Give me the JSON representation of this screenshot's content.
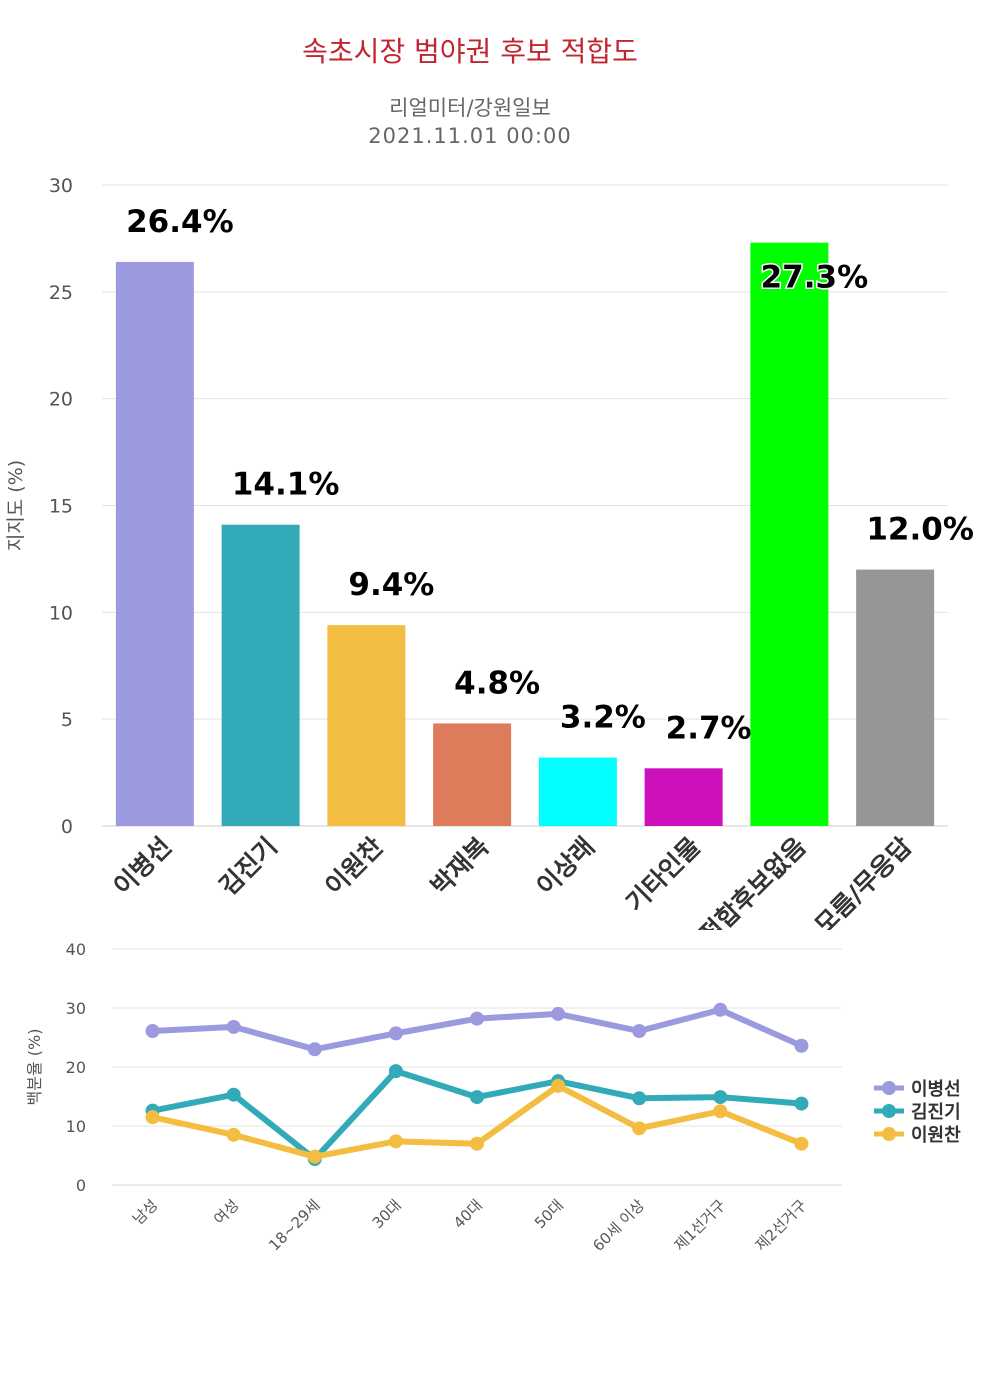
{
  "header": {
    "title": "속초시장 범야권 후보 적합도",
    "source": "리얼미터/강원일보",
    "datetime": "2021.11.01 00:00"
  },
  "chart_data": [
    {
      "type": "bar",
      "ylabel": "지지도 (%)",
      "ylim": [
        0,
        30
      ],
      "yticks": [
        0,
        5,
        10,
        15,
        20,
        25,
        30
      ],
      "grid": true,
      "categories": [
        "이병선",
        "김진기",
        "이원찬",
        "박재복",
        "이상래",
        "기타인물",
        "적합후보없음",
        "모름/무응답"
      ],
      "values": [
        26.4,
        14.1,
        9.4,
        4.8,
        3.2,
        2.7,
        27.3,
        12.0
      ],
      "data_labels": [
        "26.4%",
        "14.1%",
        "9.4%",
        "4.8%",
        "3.2%",
        "2.7%",
        "27.3%",
        "12.0%"
      ],
      "colors": [
        "#9b9ade",
        "#33aab8",
        "#f3bd42",
        "#dd7b5b",
        "#00ffff",
        "#cc10bb",
        "#00ff00",
        "#969696"
      ]
    },
    {
      "type": "line",
      "ylabel": "백분율 (%)",
      "ylim": [
        0,
        40
      ],
      "yticks": [
        0,
        10,
        20,
        30,
        40
      ],
      "grid": true,
      "legend": "right",
      "categories": [
        "남성",
        "여성",
        "18~29세",
        "30대",
        "40대",
        "50대",
        "60세 이상",
        "제1선거구",
        "제2선거구"
      ],
      "series": [
        {
          "name": "이병선",
          "color": "#9b9ade",
          "values": [
            26.1,
            26.8,
            23.0,
            25.7,
            28.2,
            29.0,
            26.1,
            29.7,
            23.6
          ]
        },
        {
          "name": "김진기",
          "color": "#33aab8",
          "values": [
            12.6,
            15.3,
            4.4,
            19.3,
            14.9,
            17.6,
            14.7,
            14.9,
            13.8
          ]
        },
        {
          "name": "이원찬",
          "color": "#f3bd42",
          "values": [
            11.5,
            8.5,
            4.8,
            7.4,
            7.0,
            16.8,
            9.6,
            12.5,
            7.0
          ]
        }
      ]
    }
  ]
}
